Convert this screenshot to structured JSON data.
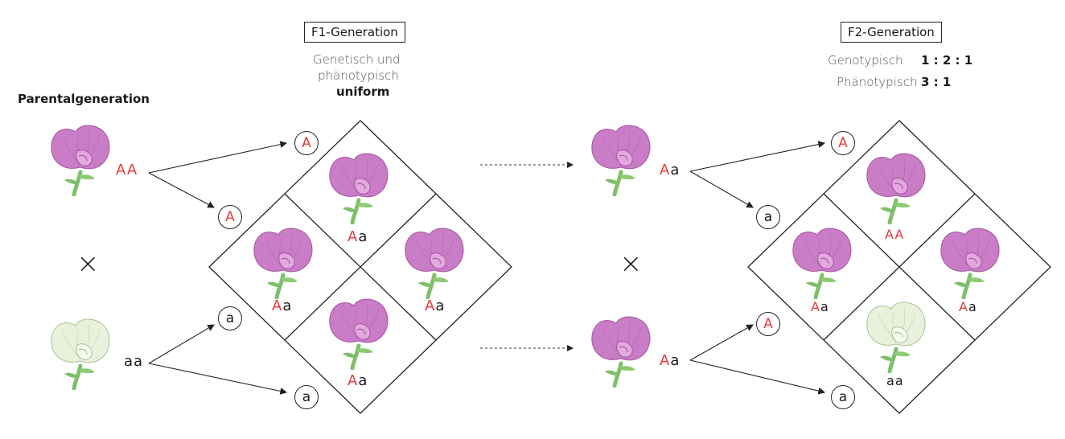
{
  "titles": {
    "parental": "Parentalgeneration",
    "f1": "F1-Generation",
    "f2": "F2-Generation"
  },
  "f1_description": {
    "line1": "Genetisch und",
    "line2": "phänotypisch",
    "line3": "uniform"
  },
  "f2_ratios": {
    "genotype_label": "Genotypisch",
    "genotype_value": "1 : 2 : 1",
    "phenotype_label": "Phänotypisch",
    "phenotype_value": "3 : 1"
  },
  "symbols": {
    "cross": "×"
  },
  "parents": [
    {
      "flower": "purple-flower",
      "allele1": "A",
      "allele2": "A"
    },
    {
      "flower": "white-flower",
      "allele1": "a",
      "allele2": "a"
    }
  ],
  "f1_gametes": [
    "A",
    "A",
    "a",
    "a"
  ],
  "f1_grid": [
    {
      "flower": "purple-flower",
      "allele1": "A",
      "allele2": "a"
    },
    {
      "flower": "purple-flower",
      "allele1": "A",
      "allele2": "a"
    },
    {
      "flower": "purple-flower",
      "allele1": "A",
      "allele2": "a"
    },
    {
      "flower": "purple-flower",
      "allele1": "A",
      "allele2": "a"
    }
  ],
  "f1_parents": [
    {
      "flower": "purple-flower",
      "allele1": "A",
      "allele2": "a"
    },
    {
      "flower": "purple-flower",
      "allele1": "A",
      "allele2": "a"
    }
  ],
  "f2_gametes": [
    "A",
    "a",
    "A",
    "a"
  ],
  "f2_grid": [
    {
      "flower": "purple-flower",
      "allele1": "A",
      "allele2": "A"
    },
    {
      "flower": "purple-flower",
      "allele1": "A",
      "allele2": "a"
    },
    {
      "flower": "purple-flower",
      "allele1": "A",
      "allele2": "a"
    },
    {
      "flower": "white-flower",
      "allele1": "a",
      "allele2": "a"
    }
  ],
  "colors": {
    "dominant": "#e8383d",
    "recessive": "#1a1a1a",
    "purple_petal": "#c97dc6",
    "white_petal": "#e8f1dc",
    "stem": "#7fbf6a"
  }
}
